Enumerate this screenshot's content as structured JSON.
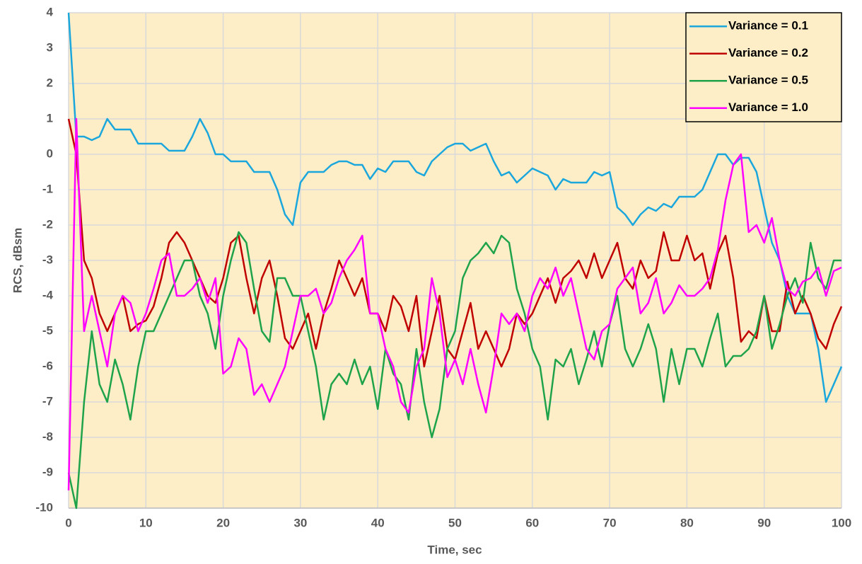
{
  "chart_data": {
    "type": "line",
    "xlabel": "Time, sec",
    "ylabel": "RCS, dBsm",
    "x": [
      0,
      1,
      2,
      3,
      4,
      5,
      6,
      7,
      8,
      9,
      10,
      11,
      12,
      13,
      14,
      15,
      16,
      17,
      18,
      19,
      20,
      21,
      22,
      23,
      24,
      25,
      26,
      27,
      28,
      29,
      30,
      31,
      32,
      33,
      34,
      35,
      36,
      37,
      38,
      39,
      40,
      41,
      42,
      43,
      44,
      45,
      46,
      47,
      48,
      49,
      50,
      51,
      52,
      53,
      54,
      55,
      56,
      57,
      58,
      59,
      60,
      61,
      62,
      63,
      64,
      65,
      66,
      67,
      68,
      69,
      70,
      71,
      72,
      73,
      74,
      75,
      76,
      77,
      78,
      79,
      80,
      81,
      82,
      83,
      84,
      85,
      86,
      87,
      88,
      89,
      90,
      91,
      92,
      93,
      94,
      95,
      96,
      97,
      98,
      99,
      100
    ],
    "series": [
      {
        "name": "Variance = 0.1",
        "color": "#1ca7dc",
        "values": [
          4,
          0.5,
          0.5,
          0.4,
          0.5,
          1,
          0.7,
          0.7,
          0.7,
          0.3,
          0.3,
          0.3,
          0.3,
          0.1,
          0.1,
          0.1,
          0.5,
          1,
          0.6,
          0,
          0,
          -0.2,
          -0.2,
          -0.2,
          -0.5,
          -0.5,
          -0.5,
          -1,
          -1.7,
          -2,
          -0.8,
          -0.5,
          -0.5,
          -0.5,
          -0.3,
          -0.2,
          -0.2,
          -0.3,
          -0.3,
          -0.7,
          -0.4,
          -0.5,
          -0.2,
          -0.2,
          -0.2,
          -0.5,
          -0.6,
          -0.2,
          0,
          0.2,
          0.3,
          0.3,
          0.1,
          0.2,
          0.3,
          -0.2,
          -0.6,
          -0.5,
          -0.8,
          -0.6,
          -0.4,
          -0.5,
          -0.6,
          -1,
          -0.7,
          -0.8,
          -0.8,
          -0.8,
          -0.5,
          -0.6,
          -0.5,
          -1.5,
          -1.7,
          -2,
          -1.7,
          -1.5,
          -1.6,
          -1.4,
          -1.5,
          -1.2,
          -1.2,
          -1.2,
          -1,
          -0.5,
          0,
          0,
          -0.3,
          -0.1,
          -0.1,
          -0.5,
          -1.5,
          -2.5,
          -3,
          -4,
          -4.5,
          -4.5,
          -4.5,
          -5.5,
          -7,
          -6.5,
          -6
        ]
      },
      {
        "name": "Variance = 0.2",
        "color": "#c00000",
        "values": [
          1,
          0,
          -3,
          -3.5,
          -4.5,
          -5,
          -4.5,
          -4,
          -5,
          -4.8,
          -4.7,
          -4.3,
          -3.5,
          -2.5,
          -2.2,
          -2.5,
          -3,
          -3.5,
          -4,
          -4.2,
          -3.5,
          -2.5,
          -2.3,
          -3.5,
          -4.5,
          -3.5,
          -3,
          -4,
          -5.2,
          -5.5,
          -5,
          -4.5,
          -5.5,
          -4.5,
          -3.8,
          -3,
          -3.5,
          -4,
          -3.5,
          -4.5,
          -4.5,
          -5,
          -4,
          -4.3,
          -5,
          -4,
          -6,
          -5,
          -4,
          -5.5,
          -5.8,
          -5,
          -4.2,
          -5.5,
          -5,
          -5.5,
          -6,
          -5.5,
          -4.5,
          -4.8,
          -4.5,
          -4,
          -3.5,
          -4.2,
          -3.5,
          -3.3,
          -3,
          -3.5,
          -2.8,
          -3.5,
          -3,
          -2.5,
          -3.5,
          -3.8,
          -3,
          -3.5,
          -3.3,
          -2.2,
          -3,
          -3,
          -2.3,
          -3,
          -2.8,
          -3.8,
          -2.8,
          -2.3,
          -3.5,
          -5.3,
          -5,
          -5.2,
          -4,
          -5,
          -5,
          -3.6,
          -4.5,
          -4,
          -4.5,
          -5.2,
          -5.5,
          -4.8,
          -4.3
        ]
      },
      {
        "name": "Variance = 0.5",
        "color": "#1fa34a",
        "values": [
          -9,
          -10,
          -7,
          -5,
          -6.5,
          -7,
          -5.8,
          -6.5,
          -7.5,
          -6,
          -5,
          -5,
          -4.5,
          -4,
          -3.5,
          -3,
          -3,
          -4,
          -4.5,
          -5.5,
          -4,
          -3,
          -2.2,
          -2.5,
          -3.8,
          -5,
          -5.3,
          -3.5,
          -3.5,
          -4,
          -4,
          -5,
          -6,
          -7.5,
          -6.5,
          -6.2,
          -6.5,
          -5.8,
          -6.5,
          -6,
          -7.2,
          -5.5,
          -6.2,
          -6.5,
          -7.5,
          -5.5,
          -7,
          -8,
          -7.2,
          -5.5,
          -5,
          -3.5,
          -3,
          -2.8,
          -2.5,
          -2.8,
          -2.3,
          -2.5,
          -3.8,
          -4.5,
          -5.5,
          -6,
          -7.5,
          -5.8,
          -6,
          -5.5,
          -6.5,
          -5.8,
          -5,
          -6,
          -4.8,
          -4,
          -5.5,
          -6,
          -5.5,
          -4.8,
          -5.5,
          -7,
          -5.5,
          -6.5,
          -5.5,
          -5.5,
          -6,
          -5.2,
          -4.5,
          -6,
          -5.7,
          -5.7,
          -5.5,
          -5,
          -4,
          -5.5,
          -4.8,
          -4,
          -3.5,
          -4.2,
          -2.5,
          -3.5,
          -3.8,
          -3,
          -3
        ]
      },
      {
        "name": "Variance = 1.0",
        "color": "#ff00ff",
        "values": [
          -9.5,
          1,
          -5,
          -4,
          -5,
          -6,
          -4.5,
          -4,
          -4.2,
          -5,
          -4.5,
          -3.8,
          -3,
          -2.8,
          -4,
          -4,
          -3.8,
          -3.5,
          -4.2,
          -3.5,
          -6.2,
          -6,
          -5.2,
          -5.5,
          -6.8,
          -6.5,
          -7,
          -6.5,
          -6,
          -5,
          -4,
          -4,
          -3.8,
          -4.5,
          -4.2,
          -3.5,
          -3,
          -2.7,
          -2.3,
          -4.5,
          -4.5,
          -5.5,
          -6,
          -7,
          -7.3,
          -6,
          -5.5,
          -3.5,
          -4.5,
          -6.3,
          -5.8,
          -6.5,
          -5.5,
          -6.5,
          -7.3,
          -6,
          -4.5,
          -4.8,
          -4.5,
          -5,
          -4,
          -3.5,
          -3.8,
          -3.2,
          -4,
          -3.5,
          -4.5,
          -5.5,
          -5.8,
          -5,
          -4.8,
          -3.8,
          -3.5,
          -3.2,
          -4.5,
          -4.2,
          -3.5,
          -4.5,
          -4.2,
          -3.7,
          -4,
          -4,
          -3.8,
          -3.5,
          -2.7,
          -1.3,
          -0.3,
          0,
          -2.2,
          -2,
          -2.5,
          -1.8,
          -3,
          -3.8,
          -4,
          -3.6,
          -3.5,
          -3.2,
          -4,
          -3.3,
          -3.2
        ]
      }
    ],
    "xlim": [
      0,
      100
    ],
    "xticks": [
      0,
      10,
      20,
      30,
      40,
      50,
      60,
      70,
      80,
      90,
      100
    ],
    "ylim": [
      -10,
      4
    ],
    "yticks": [
      -10,
      -9,
      -8,
      -7,
      -6,
      -5,
      -4,
      -3,
      -2,
      -1,
      0,
      1,
      2,
      3,
      4
    ],
    "grid": true,
    "legend": "upper right",
    "plot_background": "#fdeec8"
  }
}
